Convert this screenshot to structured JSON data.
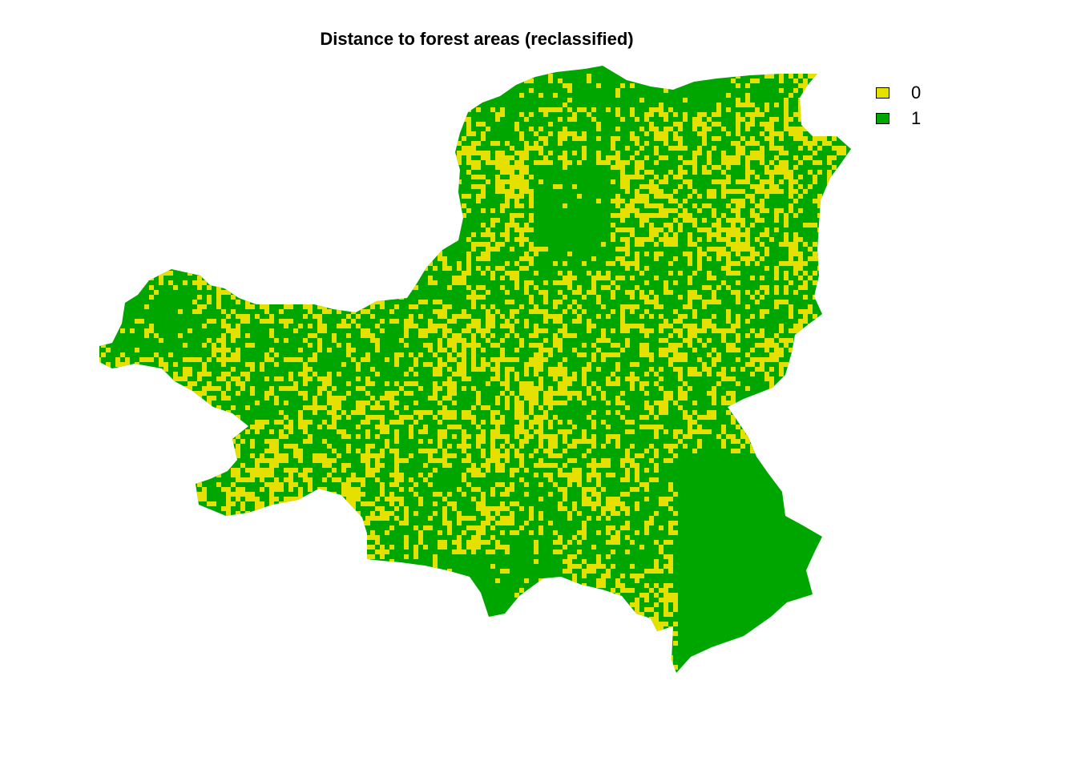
{
  "title": "Distance to forest areas (reclassified)",
  "legend": {
    "items": [
      {
        "label": "0",
        "color": "#e5e000"
      },
      {
        "label": "1",
        "color": "#00a600"
      }
    ]
  },
  "chart_data": {
    "type": "heatmap",
    "title": "Distance to forest areas (reclassified)",
    "classes": [
      {
        "value": 0,
        "color": "#e5e000"
      },
      {
        "value": 1,
        "color": "#00a600"
      }
    ],
    "legend_position": "top-right",
    "axes": "none",
    "grid": false
  }
}
